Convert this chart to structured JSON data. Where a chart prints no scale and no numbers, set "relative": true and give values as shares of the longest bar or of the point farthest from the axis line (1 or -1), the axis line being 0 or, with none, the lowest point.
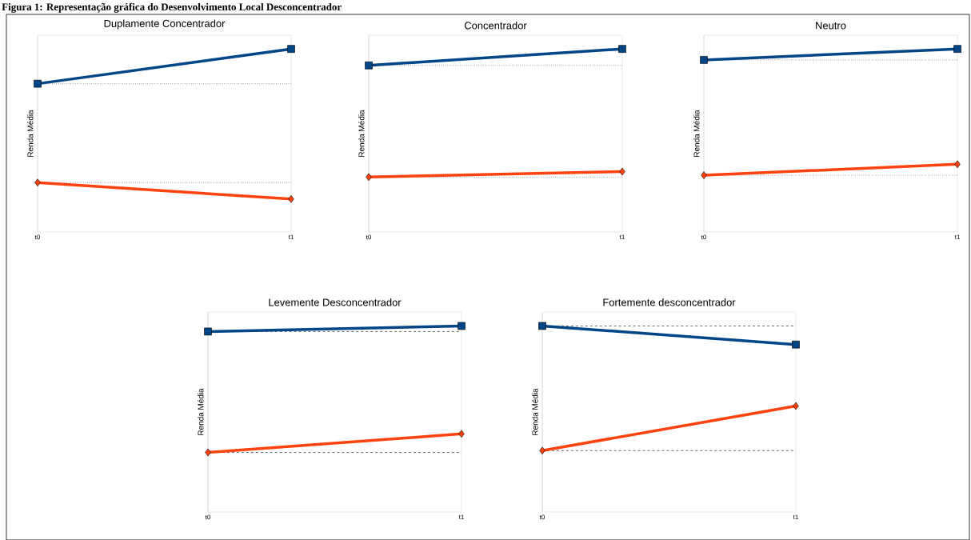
{
  "chart_data": [
    {
      "type": "line",
      "title": "Duplamente Concentrador",
      "ylabel": "Renda Média",
      "categories": [
        "t0",
        "t1"
      ],
      "relative": true,
      "grid": "x",
      "annotations": [
        "Figura 1: Representação gráfica do Desenvolvimento Local Desconcentrador"
      ],
      "series": [
        {
          "color": "#004586",
          "marker": "square",
          "values": [
            0.81,
            1
          ]
        },
        {
          "color": "#ff420e",
          "marker": "diamond",
          "values": [
            0.27,
            0.18
          ]
        }
      ],
      "ref_lines": [
        {
          "axis": "y",
          "value": 0.81,
          "line_style": "dotted"
        },
        {
          "axis": "y",
          "value": 0.27,
          "line_style": "dotted"
        }
      ]
    },
    {
      "type": "line",
      "title": "Concentrador",
      "ylabel": "Renda Média",
      "categories": [
        "t0",
        "t1"
      ],
      "relative": true,
      "grid": "x",
      "series": [
        {
          "color": "#004586",
          "marker": "square",
          "values": [
            0.91,
            1
          ]
        },
        {
          "color": "#ff420e",
          "marker": "diamond",
          "values": [
            0.3,
            0.33
          ]
        }
      ],
      "ref_lines": [
        {
          "axis": "y",
          "value": 0.91,
          "line_style": "dotted"
        },
        {
          "axis": "y",
          "value": 0.3,
          "line_style": "dotted"
        }
      ]
    },
    {
      "type": "line",
      "title": "Neutro",
      "ylabel": "Renda Média",
      "categories": [
        "t0",
        "t1"
      ],
      "relative": true,
      "grid": "x",
      "series": [
        {
          "color": "#004586",
          "marker": "square",
          "values": [
            0.94,
            1
          ]
        },
        {
          "color": "#ff420e",
          "marker": "diamond",
          "values": [
            0.31,
            0.37
          ]
        }
      ],
      "ref_lines": [
        {
          "axis": "y",
          "value": 0.94,
          "line_style": "dotted"
        },
        {
          "axis": "y",
          "value": 0.31,
          "line_style": "dotted"
        }
      ]
    },
    {
      "type": "line",
      "title": "Levemente Desconcentrador",
      "ylabel": "Renda Média",
      "categories": [
        "t0",
        "t1"
      ],
      "relative": true,
      "grid": "x",
      "series": [
        {
          "color": "#004586",
          "marker": "square",
          "values": [
            0.97,
            1
          ]
        },
        {
          "color": "#ff420e",
          "marker": "diamond",
          "values": [
            0.32,
            0.42
          ]
        }
      ],
      "ref_lines": [
        {
          "axis": "y",
          "value": 0.97,
          "line_style": "dashed"
        },
        {
          "axis": "y",
          "value": 0.32,
          "line_style": "dashed"
        }
      ]
    },
    {
      "type": "line",
      "title": "Fortemente desconcentrador",
      "ylabel": "Renda Média",
      "categories": [
        "t0",
        "t1"
      ],
      "relative": true,
      "grid": "x",
      "series": [
        {
          "color": "#004586",
          "marker": "square",
          "values": [
            1,
            0.9
          ]
        },
        {
          "color": "#ff420e",
          "marker": "diamond",
          "values": [
            0.33,
            0.57
          ]
        }
      ],
      "ref_lines": [
        {
          "axis": "y",
          "value": 1,
          "line_style": "dashed"
        },
        {
          "axis": "y",
          "value": 0.33,
          "line_style": "dashed"
        }
      ]
    }
  ]
}
